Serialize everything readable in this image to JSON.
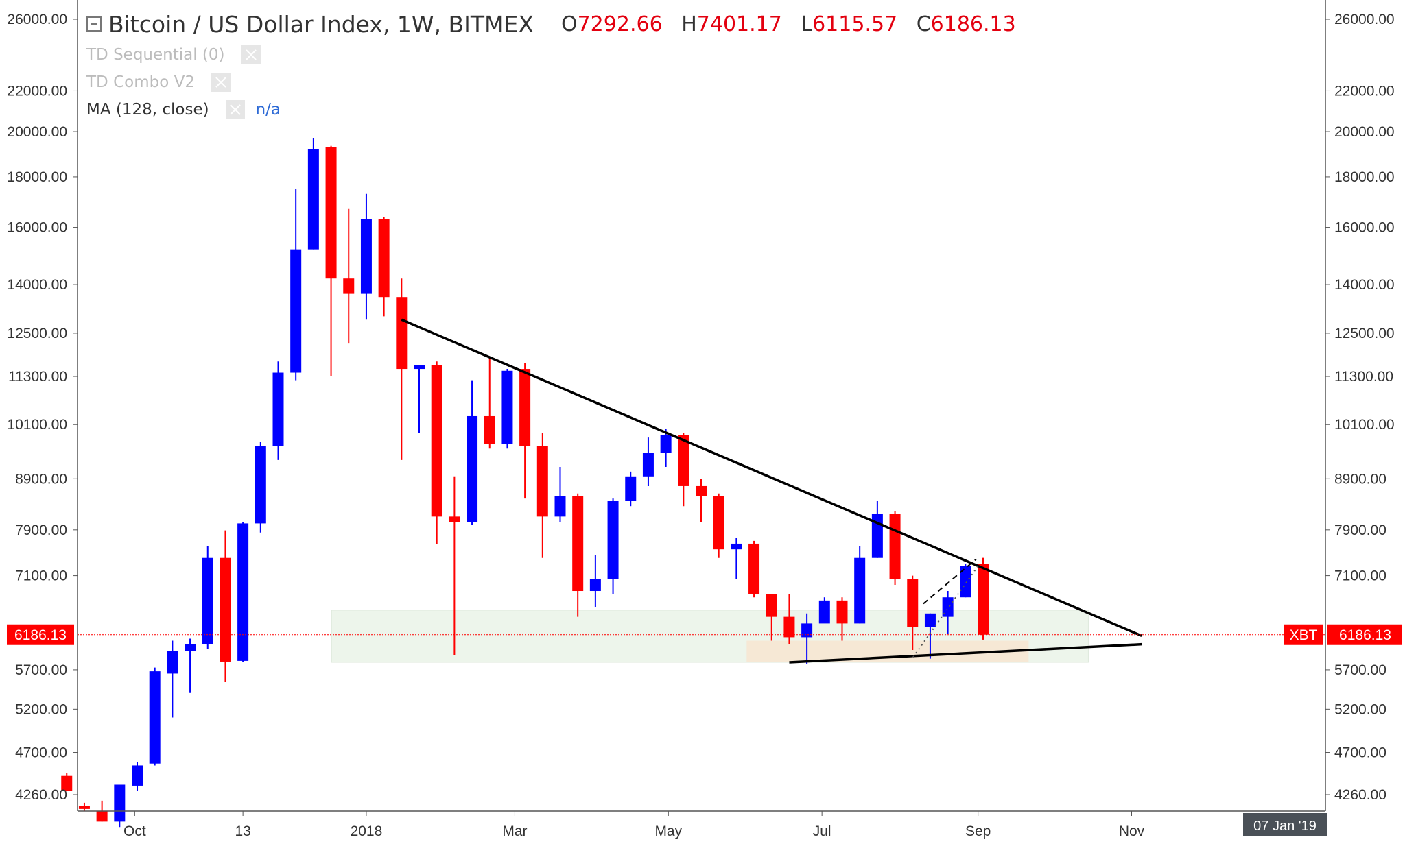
{
  "header": {
    "title": "Bitcoin / US Dollar Index, 1W, BITMEX",
    "ohlc": [
      {
        "label": "O",
        "value": "7292.66"
      },
      {
        "label": "H",
        "value": "7401.17"
      },
      {
        "label": "L",
        "value": "6115.57"
      },
      {
        "label": "C",
        "value": "6186.13"
      }
    ]
  },
  "indicators": [
    {
      "name": "TD Sequential (0)",
      "active": false
    },
    {
      "name": "TD Combo V2",
      "active": false
    },
    {
      "name": "MA (128, close)",
      "active": true,
      "value": "n/a"
    }
  ],
  "colors": {
    "up": "#0000ff",
    "down": "#ff0000",
    "price_line": "#ff0000"
  },
  "price_tag": {
    "symbol": "XBT",
    "value": "6186.13"
  },
  "date_tag": "07 Jan '19",
  "chart_data": {
    "type": "candlestick",
    "scale": "log",
    "y_ticks": [
      "26000.00",
      "22000.00",
      "20000.00",
      "18000.00",
      "16000.00",
      "14000.00",
      "12500.00",
      "11300.00",
      "10100.00",
      "8900.00",
      "7900.00",
      "7100.00",
      "5700.00",
      "5200.00",
      "4700.00",
      "4260.00"
    ],
    "x_ticks": [
      "Oct",
      "13",
      "2018",
      "Mar",
      "May",
      "Jul",
      "Sep",
      "Nov"
    ],
    "candles": [
      {
        "x": "2017-09-04",
        "o": 4450,
        "h": 4480,
        "l": 4300,
        "c": 4300
      },
      {
        "x": "2017-09-11",
        "o": 4150,
        "h": 4180,
        "l": 4100,
        "c": 4120
      },
      {
        "x": "2017-09-18",
        "o": 4100,
        "h": 4200,
        "l": 4000,
        "c": 4000
      },
      {
        "x": "2017-09-25",
        "o": 4000,
        "h": 4360,
        "l": 3950,
        "c": 4360
      },
      {
        "x": "2017-10-02",
        "o": 4350,
        "h": 4600,
        "l": 4300,
        "c": 4560
      },
      {
        "x": "2017-10-09",
        "o": 4580,
        "h": 5730,
        "l": 4560,
        "c": 5680
      },
      {
        "x": "2017-10-16",
        "o": 5650,
        "h": 6100,
        "l": 5100,
        "c": 5960
      },
      {
        "x": "2017-10-23",
        "o": 5960,
        "h": 6130,
        "l": 5400,
        "c": 6050
      },
      {
        "x": "2017-10-30",
        "o": 6050,
        "h": 7600,
        "l": 5980,
        "c": 7400
      },
      {
        "x": "2017-11-06",
        "o": 7400,
        "h": 7890,
        "l": 5540,
        "c": 5810
      },
      {
        "x": "2017-11-13",
        "o": 5820,
        "h": 8050,
        "l": 5800,
        "c": 8020
      },
      {
        "x": "2017-11-20",
        "o": 8020,
        "h": 9700,
        "l": 7850,
        "c": 9600
      },
      {
        "x": "2017-11-27",
        "o": 9600,
        "h": 11700,
        "l": 9300,
        "c": 11400
      },
      {
        "x": "2017-12-04",
        "o": 11400,
        "h": 17500,
        "l": 11200,
        "c": 15200
      },
      {
        "x": "2017-12-11",
        "o": 15200,
        "h": 19700,
        "l": 15200,
        "c": 19200
      },
      {
        "x": "2017-12-18",
        "o": 19300,
        "h": 19350,
        "l": 11300,
        "c": 14200
      },
      {
        "x": "2017-12-25",
        "o": 14200,
        "h": 16700,
        "l": 12200,
        "c": 13700
      },
      {
        "x": "2018-01-01",
        "o": 13700,
        "h": 17300,
        "l": 12900,
        "c": 16300
      },
      {
        "x": "2018-01-08",
        "o": 16300,
        "h": 16400,
        "l": 13000,
        "c": 13600
      },
      {
        "x": "2018-01-15",
        "o": 13600,
        "h": 14200,
        "l": 9300,
        "c": 11500
      },
      {
        "x": "2018-01-22",
        "o": 11500,
        "h": 11600,
        "l": 9900,
        "c": 11600
      },
      {
        "x": "2018-01-29",
        "o": 11600,
        "h": 11700,
        "l": 7650,
        "c": 8150
      },
      {
        "x": "2018-02-05",
        "o": 8150,
        "h": 8950,
        "l": 5900,
        "c": 8050
      },
      {
        "x": "2018-02-12",
        "o": 8050,
        "h": 11200,
        "l": 8000,
        "c": 10300
      },
      {
        "x": "2018-02-19",
        "o": 10300,
        "h": 11800,
        "l": 9550,
        "c": 9650
      },
      {
        "x": "2018-02-26",
        "o": 9650,
        "h": 11500,
        "l": 9550,
        "c": 11450
      },
      {
        "x": "2018-03-05",
        "o": 11500,
        "h": 11650,
        "l": 8500,
        "c": 9600
      },
      {
        "x": "2018-03-12",
        "o": 9600,
        "h": 9900,
        "l": 7400,
        "c": 8150
      },
      {
        "x": "2018-03-19",
        "o": 8150,
        "h": 9150,
        "l": 8050,
        "c": 8550
      },
      {
        "x": "2018-03-26",
        "o": 8550,
        "h": 8600,
        "l": 6450,
        "c": 6850
      },
      {
        "x": "2018-04-02",
        "o": 6850,
        "h": 7450,
        "l": 6600,
        "c": 7050
      },
      {
        "x": "2018-04-09",
        "o": 7050,
        "h": 8500,
        "l": 6800,
        "c": 8450
      },
      {
        "x": "2018-04-16",
        "o": 8450,
        "h": 9050,
        "l": 8350,
        "c": 8950
      },
      {
        "x": "2018-04-23",
        "o": 8950,
        "h": 9800,
        "l": 8750,
        "c": 9450
      },
      {
        "x": "2018-04-30",
        "o": 9450,
        "h": 10000,
        "l": 9150,
        "c": 9850
      },
      {
        "x": "2018-05-07",
        "o": 9850,
        "h": 9900,
        "l": 8350,
        "c": 8750
      },
      {
        "x": "2018-05-14",
        "o": 8750,
        "h": 8900,
        "l": 8050,
        "c": 8550
      },
      {
        "x": "2018-05-21",
        "o": 8550,
        "h": 8600,
        "l": 7400,
        "c": 7550
      },
      {
        "x": "2018-05-28",
        "o": 7550,
        "h": 7750,
        "l": 7050,
        "c": 7650
      },
      {
        "x": "2018-06-04",
        "o": 7650,
        "h": 7700,
        "l": 6750,
        "c": 6800
      },
      {
        "x": "2018-06-11",
        "o": 6800,
        "h": 6800,
        "l": 6100,
        "c": 6450
      },
      {
        "x": "2018-06-18",
        "o": 6450,
        "h": 6800,
        "l": 6050,
        "c": 6150
      },
      {
        "x": "2018-06-25",
        "o": 6150,
        "h": 6500,
        "l": 5780,
        "c": 6350
      },
      {
        "x": "2018-07-02",
        "o": 6350,
        "h": 6750,
        "l": 6400,
        "c": 6700
      },
      {
        "x": "2018-07-09",
        "o": 6700,
        "h": 6750,
        "l": 6100,
        "c": 6350
      },
      {
        "x": "2018-07-16",
        "o": 6350,
        "h": 7600,
        "l": 6350,
        "c": 7400
      },
      {
        "x": "2018-07-23",
        "o": 7400,
        "h": 8450,
        "l": 7400,
        "c": 8200
      },
      {
        "x": "2018-07-30",
        "o": 8200,
        "h": 8250,
        "l": 6950,
        "c": 7050
      },
      {
        "x": "2018-08-06",
        "o": 7050,
        "h": 7100,
        "l": 5970,
        "c": 6300
      },
      {
        "x": "2018-08-13",
        "o": 6300,
        "h": 6500,
        "l": 5850,
        "c": 6500
      },
      {
        "x": "2018-08-20",
        "o": 6450,
        "h": 6850,
        "l": 6200,
        "c": 6750
      },
      {
        "x": "2018-08-27",
        "o": 6750,
        "h": 7300,
        "l": 6750,
        "c": 7260
      },
      {
        "x": "2018-09-03",
        "o": 7292.66,
        "h": 7401.17,
        "l": 6115.57,
        "c": 6186.13
      }
    ],
    "annotations": {
      "resistance_line": {
        "from": {
          "x": "2018-01-15",
          "y": 12900
        },
        "to": {
          "x": "2018-11-05",
          "y": 6170
        }
      },
      "support_line": {
        "from": {
          "x": "2018-06-18",
          "y": 5800
        },
        "to": {
          "x": "2018-11-05",
          "y": 6050
        }
      },
      "zone_wide": {
        "x_from": "2017-12-25",
        "x_to": "2018-10-08",
        "y_low": 5800,
        "y_high": 6550
      },
      "zone_inner": {
        "x_from": "2018-05-28",
        "x_to": "2018-09-17",
        "y_low": 5800,
        "y_high": 6100
      }
    }
  }
}
